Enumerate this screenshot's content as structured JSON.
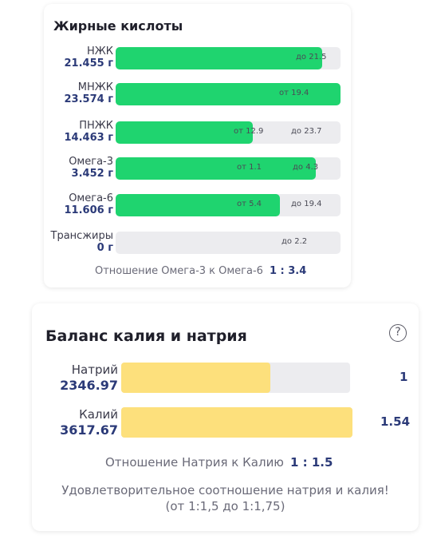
{
  "fatty_acids": {
    "title": "Жирные кислоты",
    "rows": [
      {
        "name": "НЖК",
        "value": "21.455 г",
        "fill": 0.92,
        "mark_low": "",
        "mark_high": "до 21.5"
      },
      {
        "name": "МНЖК",
        "value": "23.574 г",
        "fill": 1.0,
        "mark_low": "от 19.4",
        "mark_high": ""
      },
      {
        "name": "ПНЖК",
        "value": "14.463 г",
        "fill": 0.61,
        "mark_low": "от 12.9",
        "mark_high": "до 23.7"
      },
      {
        "name": "Омега-3",
        "value": "3.452 г",
        "fill": 0.89,
        "mark_low": "от 1.1",
        "mark_high": "до 4.3"
      },
      {
        "name": "Омега-6",
        "value": "11.606 г",
        "fill": 0.73,
        "mark_low": "от 5.4",
        "mark_high": "до 19.4"
      },
      {
        "name": "Трансжиры",
        "value": "0 г",
        "fill": 0.0,
        "mark_low": "",
        "mark_high": "до 2.2"
      }
    ],
    "ratio_label": "Отношение Омега-3 к Омега-6",
    "ratio_value": "1 : 3.4"
  },
  "balance": {
    "title": "Баланс калия и натрия",
    "help_icon": "question-circle-icon",
    "rows": [
      {
        "name": "Натрий",
        "value": "2346.97",
        "fill": 0.65,
        "side": "1"
      },
      {
        "name": "Калий",
        "value": "3617.67",
        "fill": 1.0,
        "side": "1.54"
      }
    ],
    "ratio_label": "Отношение Натрия к Калию",
    "ratio_value": "1 : 1.5",
    "note_line1": "Удовлетворительное соотношение натрия и калия!",
    "note_line2": "(от 1:1,5 до 1:1,75)"
  },
  "colors": {
    "fat_fill": "#1fd46f",
    "balance_fill": "#fde07c",
    "track": "#ececef",
    "value_text": "#2b3a78"
  }
}
